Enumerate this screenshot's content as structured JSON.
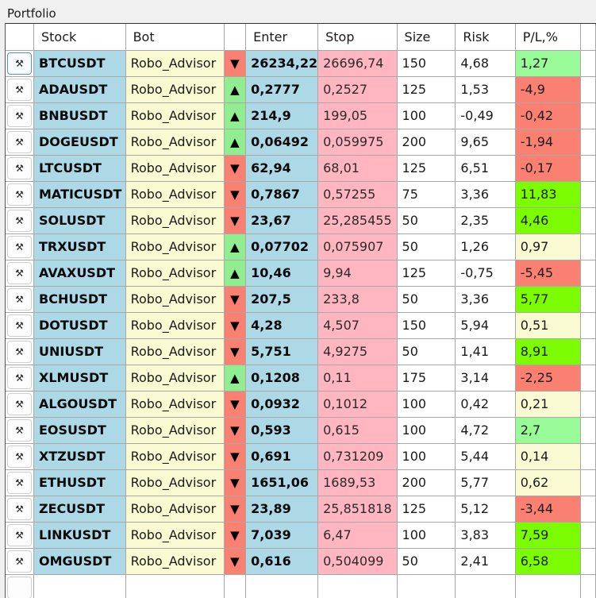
{
  "window": {
    "title": "Portfolio"
  },
  "table": {
    "columns": [
      "",
      "Stock",
      "Bot",
      "",
      "Enter",
      "Stop",
      "Size",
      "Risk",
      "P/L,%"
    ],
    "colors": {
      "stock_bg": "#add8e6",
      "bot_bg": "#fafad2",
      "up_bg": "#90ee90",
      "down_bg": "#fa8072",
      "stop_bg": "#ffb6c1",
      "pl_negative": "#fa8072",
      "pl_small_positive": "#98fb98",
      "pl_large_positive": "#7cfc00",
      "pl_neutral": "#fafad2"
    },
    "row_button_icon": "pick-hammer-icon",
    "rows": [
      {
        "stock": "BTCUSDT",
        "bot": "Robo_Advisor",
        "dir": "down",
        "dir_glyph": "▼",
        "enter": "26234,22",
        "stop": "26696,74",
        "size": "150",
        "risk": "4,68",
        "pl": "1,27",
        "pl_class": "pos-lt"
      },
      {
        "stock": "ADAUSDT",
        "bot": "Robo_Advisor",
        "dir": "up",
        "dir_glyph": "▲",
        "enter": "0,2777",
        "stop": "0,2527",
        "size": "125",
        "risk": "1,53",
        "pl": "-4,9",
        "pl_class": "neg"
      },
      {
        "stock": "BNBUSDT",
        "bot": "Robo_Advisor",
        "dir": "up",
        "dir_glyph": "▲",
        "enter": "214,9",
        "stop": "199,05",
        "size": "100",
        "risk": "-0,49",
        "pl": "-0,42",
        "pl_class": "neg"
      },
      {
        "stock": "DOGEUSDT",
        "bot": "Robo_Advisor",
        "dir": "up",
        "dir_glyph": "▲",
        "enter": "0,06492",
        "stop": "0,059975",
        "size": "200",
        "risk": "9,65",
        "pl": "-1,94",
        "pl_class": "neg"
      },
      {
        "stock": "LTCUSDT",
        "bot": "Robo_Advisor",
        "dir": "down",
        "dir_glyph": "▼",
        "enter": "62,94",
        "stop": "68,01",
        "size": "125",
        "risk": "6,51",
        "pl": "-0,17",
        "pl_class": "neg"
      },
      {
        "stock": "MATICUSDT",
        "bot": "Robo_Advisor",
        "dir": "down",
        "dir_glyph": "▼",
        "enter": "0,7867",
        "stop": "0,57255",
        "size": "75",
        "risk": "3,36",
        "pl": "11,83",
        "pl_class": "pos-hi"
      },
      {
        "stock": "SOLUSDT",
        "bot": "Robo_Advisor",
        "dir": "down",
        "dir_glyph": "▼",
        "enter": "23,67",
        "stop": "25,285455",
        "size": "50",
        "risk": "2,35",
        "pl": "4,46",
        "pl_class": "pos-hi"
      },
      {
        "stock": "TRXUSDT",
        "bot": "Robo_Advisor",
        "dir": "up",
        "dir_glyph": "▲",
        "enter": "0,07702",
        "stop": "0,075907",
        "size": "50",
        "risk": "1,26",
        "pl": "0,97",
        "pl_class": "neutral"
      },
      {
        "stock": "AVAXUSDT",
        "bot": "Robo_Advisor",
        "dir": "up",
        "dir_glyph": "▲",
        "enter": "10,46",
        "stop": "9,94",
        "size": "125",
        "risk": "-0,75",
        "pl": "-5,45",
        "pl_class": "neg"
      },
      {
        "stock": "BCHUSDT",
        "bot": "Robo_Advisor",
        "dir": "down",
        "dir_glyph": "▼",
        "enter": "207,5",
        "stop": "233,8",
        "size": "50",
        "risk": "3,36",
        "pl": "5,77",
        "pl_class": "pos-hi"
      },
      {
        "stock": "DOTUSDT",
        "bot": "Robo_Advisor",
        "dir": "down",
        "dir_glyph": "▼",
        "enter": "4,28",
        "stop": "4,507",
        "size": "150",
        "risk": "5,94",
        "pl": "0,51",
        "pl_class": "neutral"
      },
      {
        "stock": "UNIUSDT",
        "bot": "Robo_Advisor",
        "dir": "down",
        "dir_glyph": "▼",
        "enter": "5,751",
        "stop": "4,9275",
        "size": "50",
        "risk": "1,41",
        "pl": "8,91",
        "pl_class": "pos-hi"
      },
      {
        "stock": "XLMUSDT",
        "bot": "Robo_Advisor",
        "dir": "up",
        "dir_glyph": "▲",
        "enter": "0,1208",
        "stop": "0,11",
        "size": "175",
        "risk": "3,14",
        "pl": "-2,25",
        "pl_class": "neg"
      },
      {
        "stock": "ALGOUSDT",
        "bot": "Robo_Advisor",
        "dir": "down",
        "dir_glyph": "▼",
        "enter": "0,0932",
        "stop": "0,1012",
        "size": "100",
        "risk": "0,42",
        "pl": "0,21",
        "pl_class": "neutral"
      },
      {
        "stock": "EOSUSDT",
        "bot": "Robo_Advisor",
        "dir": "down",
        "dir_glyph": "▼",
        "enter": "0,593",
        "stop": "0,615",
        "size": "100",
        "risk": "4,72",
        "pl": "2,7",
        "pl_class": "pos-lt"
      },
      {
        "stock": "XTZUSDT",
        "bot": "Robo_Advisor",
        "dir": "down",
        "dir_glyph": "▼",
        "enter": "0,691",
        "stop": "0,731209",
        "size": "100",
        "risk": "5,44",
        "pl": "0,14",
        "pl_class": "neutral"
      },
      {
        "stock": "ETHUSDT",
        "bot": "Robo_Advisor",
        "dir": "down",
        "dir_glyph": "▼",
        "enter": "1651,06",
        "stop": "1689,53",
        "size": "200",
        "risk": "5,77",
        "pl": "0,62",
        "pl_class": "neutral"
      },
      {
        "stock": "ZECUSDT",
        "bot": "Robo_Advisor",
        "dir": "down",
        "dir_glyph": "▼",
        "enter": "23,89",
        "stop": "25,851818",
        "size": "125",
        "risk": "5,12",
        "pl": "-3,44",
        "pl_class": "neg"
      },
      {
        "stock": "LINKUSDT",
        "bot": "Robo_Advisor",
        "dir": "down",
        "dir_glyph": "▼",
        "enter": "7,039",
        "stop": "6,47",
        "size": "100",
        "risk": "3,83",
        "pl": "7,59",
        "pl_class": "pos-hi"
      },
      {
        "stock": "OMGUSDT",
        "bot": "Robo_Advisor",
        "dir": "down",
        "dir_glyph": "▼",
        "enter": "0,616",
        "stop": "0,504099",
        "size": "50",
        "risk": "2,41",
        "pl": "6,58",
        "pl_class": "pos-hi"
      }
    ]
  }
}
